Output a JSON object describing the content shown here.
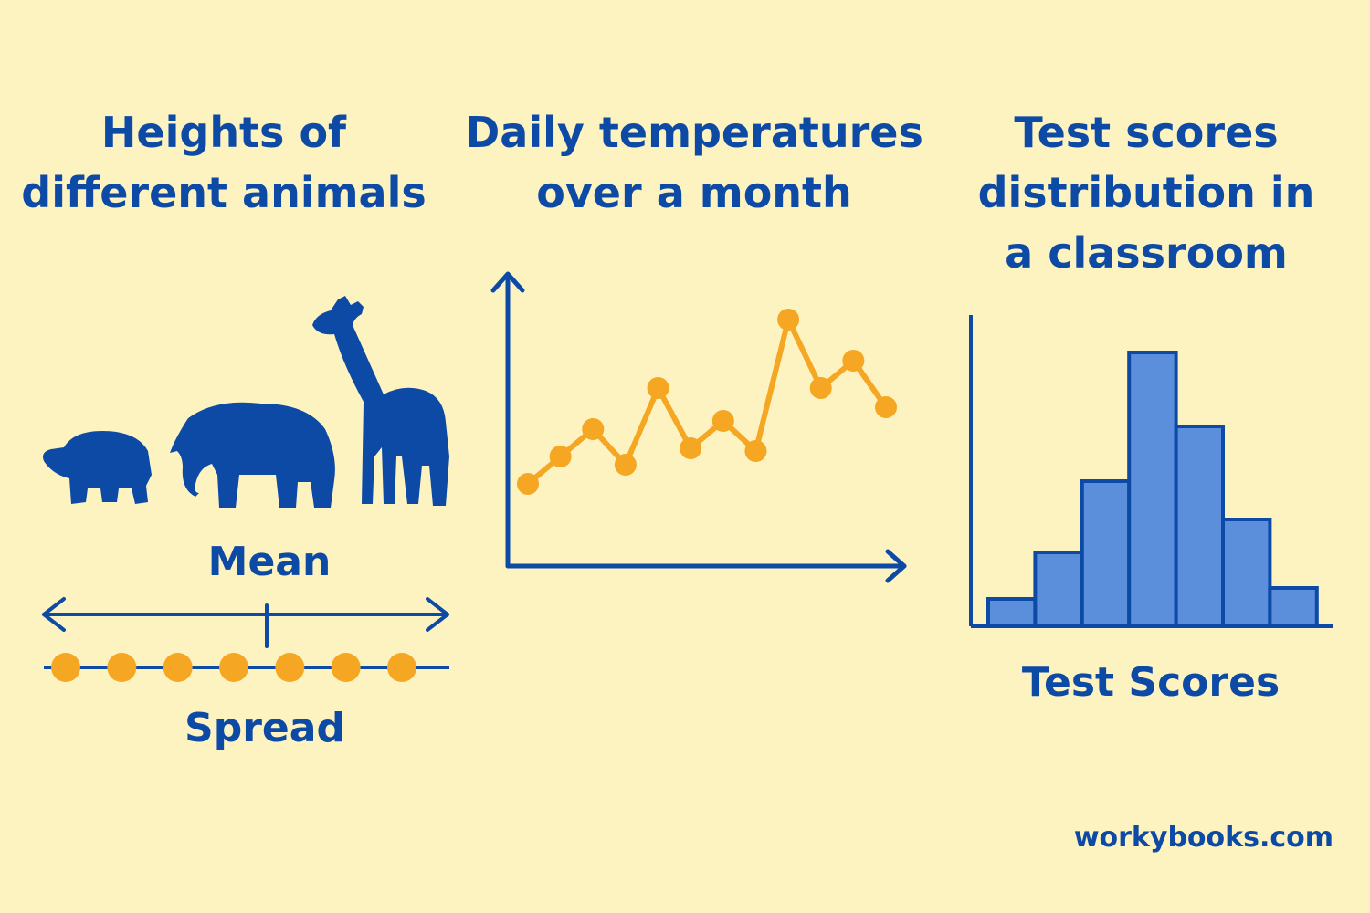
{
  "panels": {
    "animals": {
      "title": "Heights of\ndifferent animals",
      "mean_label": "Mean",
      "spread_label": "Spread",
      "animals": [
        "turtle",
        "elephant",
        "giraffe"
      ],
      "spread_points": [
        1,
        2,
        3,
        4,
        5,
        6,
        7
      ]
    },
    "temperatures": {
      "title": "Daily temperatures\nover a month"
    },
    "scores": {
      "title": "Test scores\ndistribution in\na classroom",
      "xlabel": "Test Scores"
    }
  },
  "chart_data": [
    {
      "type": "line",
      "title": "Daily temperatures over a month",
      "x": [
        1,
        2,
        3,
        4,
        5,
        6,
        7,
        8,
        9,
        10,
        11,
        12
      ],
      "series": [
        {
          "values": [
            1.0,
            2.0,
            3.0,
            1.7,
            4.5,
            2.3,
            3.3,
            2.2,
            7.0,
            4.5,
            5.5,
            3.8
          ]
        }
      ],
      "ylim": [
        0,
        10
      ],
      "grid": false
    },
    {
      "type": "bar",
      "title": "Test scores distribution in a classroom",
      "xlabel": "Test Scores",
      "categories": [
        "1",
        "2",
        "3",
        "4",
        "5",
        "6",
        "7"
      ],
      "values": [
        1,
        2.7,
        5.3,
        10,
        7.3,
        3.9,
        1.4
      ],
      "ylim": [
        0,
        11
      ],
      "grid": false
    }
  ],
  "colors": {
    "background": "#fdf3c0",
    "primary_blue": "#0d4aa6",
    "accent_orange": "#f5a623",
    "bar_fill": "#5b8fdc"
  },
  "watermark": "workybooks.com"
}
